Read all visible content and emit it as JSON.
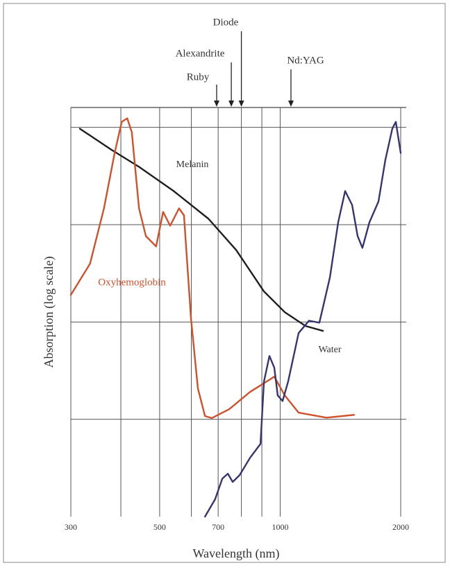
{
  "chart_data": {
    "type": "line",
    "y_label": "Absorption (log scale)",
    "x_label": "Wavelength (nm)",
    "x_log": true,
    "y_log": true,
    "xlim": [
      300,
      2000
    ],
    "xticks": [
      300,
      500,
      700,
      1000,
      2000
    ],
    "x_minor_ticks": [
      400,
      600,
      800,
      900
    ],
    "ylim": [
      1,
      16000
    ],
    "ygrid": [
      10,
      100,
      1000,
      10000
    ],
    "series": [
      {
        "name": "Melanin",
        "color": "#1e1e1e",
        "x": [
          316,
          378,
          444,
          542,
          662,
          776,
          911,
          1027,
          1157,
          1279
        ],
        "values": [
          9680,
          5920,
          3930,
          2215,
          1150,
          550,
          206,
          126,
          91,
          81
        ]
      },
      {
        "name": "Oxyhemoglobin",
        "color": "#d0502c",
        "x": [
          300,
          335,
          363,
          386,
          402,
          415,
          426,
          444,
          462,
          490,
          510,
          531,
          559,
          575,
          599,
          623,
          649,
          675,
          746,
          841,
          967,
          1027,
          1112,
          1305,
          1530
        ],
        "values": [
          190,
          396,
          1470,
          5450,
          11400,
          12380,
          8920,
          1470,
          763,
          597,
          1355,
          975,
          1470,
          1248,
          107,
          20.7,
          10.8,
          10.3,
          12.7,
          19.1,
          27.4,
          17.6,
          11.7,
          10.4,
          11.1
        ]
      },
      {
        "name": "Water",
        "color": "#35356f",
        "x": [
          649,
          688,
          717,
          740,
          761,
          792,
          841,
          893,
          911,
          940,
          967,
          986,
          1014,
          1047,
          1112,
          1180,
          1253,
          1331,
          1396,
          1453,
          1512,
          1561,
          1605,
          1671,
          1760,
          1831,
          1906,
          1945,
          2000
        ],
        "values": [
          1.0,
          1.51,
          2.46,
          2.76,
          2.27,
          2.67,
          4.03,
          5.59,
          24.4,
          44.8,
          33.9,
          17.6,
          15.4,
          24.4,
          76.9,
          103,
          98.4,
          286,
          1059,
          2215,
          1596,
          763,
          578,
          1059,
          1730,
          4630,
          9680,
          11400,
          5450
        ]
      }
    ],
    "lasers": [
      {
        "name": "Ruby",
        "x": 694
      },
      {
        "name": "Alexandrite",
        "x": 755
      },
      {
        "name": "Diode",
        "x": 800
      },
      {
        "name": "Nd:YAG",
        "x": 1064
      }
    ]
  }
}
